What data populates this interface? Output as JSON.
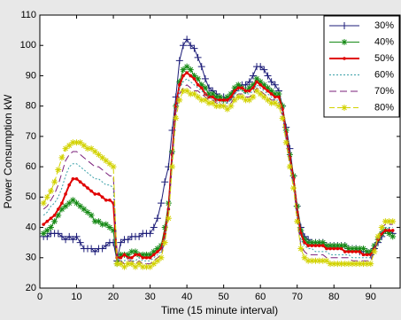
{
  "chart_data": {
    "type": "line",
    "x_label": "Time (15 minute interval)",
    "y_label": "Power Consumption kW",
    "x": [
      1,
      2,
      3,
      4,
      5,
      6,
      7,
      8,
      9,
      10,
      11,
      12,
      13,
      14,
      15,
      16,
      17,
      18,
      19,
      20,
      21,
      22,
      23,
      24,
      25,
      26,
      27,
      28,
      29,
      30,
      31,
      32,
      33,
      34,
      35,
      36,
      37,
      38,
      39,
      40,
      41,
      42,
      43,
      44,
      45,
      46,
      47,
      48,
      49,
      50,
      51,
      52,
      53,
      54,
      55,
      56,
      57,
      58,
      59,
      60,
      61,
      62,
      63,
      64,
      65,
      66,
      67,
      68,
      69,
      70,
      71,
      72,
      73,
      74,
      75,
      76,
      77,
      78,
      79,
      80,
      81,
      82,
      83,
      84,
      85,
      86,
      87,
      88,
      89,
      90,
      91,
      92,
      93,
      94,
      95,
      96
    ],
    "xlim": [
      0,
      98
    ],
    "xticks": [
      0,
      10,
      20,
      30,
      40,
      50,
      60,
      70,
      80,
      90
    ],
    "ylim": [
      20,
      110
    ],
    "yticks": [
      20,
      30,
      40,
      50,
      60,
      70,
      80,
      90,
      100,
      110
    ],
    "legend_position": "upper right",
    "series": [
      {
        "name": "30%",
        "color": "#1c1c78",
        "marker": "+",
        "dash": "none",
        "width": 1,
        "values": [
          37,
          37,
          38,
          38,
          38,
          37,
          36,
          37,
          36,
          37,
          35,
          33,
          33,
          33,
          32,
          33,
          33,
          34,
          35,
          35,
          29,
          35,
          36,
          36,
          37,
          37,
          37,
          38,
          38,
          38,
          40,
          43,
          48,
          55,
          60,
          72,
          83,
          95,
          100,
          102,
          100,
          99,
          96,
          93,
          89,
          86,
          85,
          84,
          83,
          83,
          82,
          83,
          85,
          86,
          87,
          87,
          88,
          90,
          93,
          93,
          92,
          90,
          88,
          87,
          85,
          80,
          73,
          66,
          57,
          47,
          40,
          37,
          36,
          35,
          35,
          35,
          35,
          34,
          34,
          34,
          34,
          34,
          34,
          33,
          33,
          33,
          32,
          32,
          32,
          31,
          33,
          35,
          37,
          39,
          39,
          38
        ]
      },
      {
        "name": "40%",
        "color": "#168a16",
        "marker": "*",
        "dash": "none",
        "width": 1,
        "values": [
          38,
          39,
          40,
          42,
          44,
          46,
          47,
          48,
          49,
          48,
          47,
          46,
          45,
          44,
          42,
          42,
          41,
          41,
          40,
          39,
          28,
          31,
          31,
          31,
          32,
          32,
          31,
          31,
          31,
          31,
          32,
          33,
          34,
          40,
          48,
          65,
          80,
          88,
          92,
          93,
          92,
          90,
          89,
          87,
          86,
          84,
          84,
          83,
          83,
          82,
          83,
          84,
          86,
          87,
          86,
          85,
          86,
          87,
          89,
          88,
          87,
          86,
          85,
          84,
          84,
          80,
          72,
          64,
          57,
          47,
          39,
          36,
          35,
          35,
          35,
          35,
          35,
          34,
          34,
          34,
          34,
          34,
          34,
          33,
          33,
          33,
          33,
          33,
          32,
          32,
          34,
          36,
          38,
          39,
          38,
          37
        ]
      },
      {
        "name": "50%",
        "color": "#e00000",
        "marker": ".",
        "dash": "none",
        "width": 2,
        "values": [
          41,
          42,
          43,
          44,
          46,
          48,
          51,
          54,
          56,
          56,
          55,
          54,
          53,
          52,
          51,
          51,
          50,
          49,
          49,
          48,
          30,
          30,
          31,
          30,
          30,
          31,
          31,
          30,
          30,
          30,
          31,
          32,
          33,
          38,
          46,
          64,
          80,
          87,
          90,
          91,
          90,
          89,
          87,
          86,
          84,
          83,
          83,
          82,
          82,
          82,
          82,
          83,
          85,
          86,
          86,
          85,
          85,
          86,
          88,
          87,
          86,
          85,
          84,
          83,
          83,
          79,
          71,
          63,
          56,
          45,
          38,
          35,
          34,
          34,
          34,
          34,
          34,
          33,
          33,
          33,
          33,
          33,
          32,
          32,
          32,
          32,
          32,
          31,
          31,
          31,
          33,
          36,
          38,
          39,
          39,
          39
        ]
      },
      {
        "name": "60%",
        "color": "#3aa0a8",
        "marker": "none",
        "dash": "2 2",
        "width": 1,
        "values": [
          44,
          45,
          47,
          48,
          50,
          53,
          57,
          60,
          61,
          61,
          60,
          59,
          58,
          57,
          56,
          56,
          55,
          54,
          54,
          53,
          30,
          29,
          29,
          30,
          29,
          29,
          30,
          29,
          29,
          29,
          30,
          31,
          32,
          37,
          45,
          63,
          79,
          86,
          88,
          89,
          88,
          87,
          86,
          85,
          84,
          83,
          82,
          82,
          81,
          81,
          81,
          82,
          84,
          85,
          85,
          84,
          84,
          85,
          87,
          86,
          85,
          84,
          83,
          82,
          82,
          78,
          70,
          62,
          55,
          44,
          36,
          34,
          33,
          33,
          32,
          32,
          32,
          32,
          31,
          31,
          31,
          31,
          31,
          31,
          30,
          30,
          30,
          30,
          30,
          30,
          33,
          36,
          39,
          40,
          40,
          40
        ]
      },
      {
        "name": "70%",
        "color": "#7a1f7a",
        "marker": "none",
        "dash": "8 4",
        "width": 1,
        "values": [
          46,
          47,
          49,
          51,
          54,
          58,
          62,
          64,
          65,
          65,
          64,
          63,
          62,
          61,
          60,
          60,
          59,
          58,
          57,
          57,
          29,
          29,
          28,
          29,
          29,
          28,
          29,
          28,
          28,
          28,
          29,
          30,
          31,
          36,
          44,
          62,
          78,
          84,
          86,
          87,
          86,
          85,
          85,
          84,
          83,
          82,
          82,
          81,
          81,
          80,
          80,
          81,
          83,
          84,
          84,
          83,
          83,
          84,
          86,
          85,
          84,
          83,
          82,
          82,
          81,
          77,
          69,
          61,
          54,
          43,
          34,
          32,
          31,
          31,
          31,
          31,
          31,
          30,
          30,
          30,
          30,
          30,
          30,
          30,
          29,
          29,
          29,
          29,
          29,
          29,
          33,
          37,
          40,
          41,
          41,
          41
        ]
      },
      {
        "name": "80%",
        "color": "#d2d200",
        "marker": "*",
        "dash": "6 3",
        "width": 1,
        "values": [
          48,
          50,
          52,
          55,
          59,
          63,
          66,
          67,
          68,
          68,
          68,
          67,
          66,
          66,
          65,
          64,
          63,
          62,
          61,
          60,
          28,
          28,
          27,
          28,
          28,
          27,
          28,
          27,
          27,
          27,
          28,
          29,
          30,
          35,
          43,
          60,
          76,
          82,
          85,
          85,
          84,
          84,
          83,
          82,
          82,
          81,
          81,
          80,
          80,
          80,
          79,
          80,
          82,
          83,
          83,
          82,
          82,
          83,
          85,
          84,
          83,
          82,
          81,
          81,
          80,
          76,
          68,
          60,
          53,
          42,
          33,
          30,
          29,
          29,
          29,
          29,
          29,
          29,
          28,
          28,
          28,
          28,
          28,
          28,
          28,
          28,
          28,
          28,
          28,
          28,
          32,
          37,
          40,
          42,
          42,
          42
        ]
      }
    ]
  }
}
